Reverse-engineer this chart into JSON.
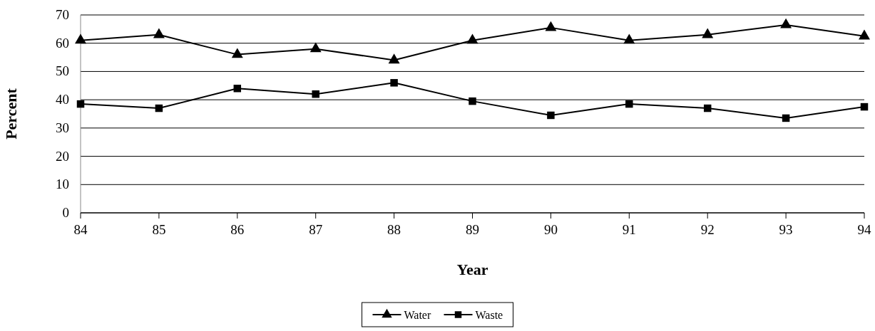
{
  "chart_data": {
    "type": "line",
    "xlabel": "Year",
    "ylabel": "Percent",
    "x": [
      84,
      85,
      86,
      87,
      88,
      89,
      90,
      91,
      92,
      93,
      94
    ],
    "xlim": [
      84,
      94
    ],
    "xticks": [
      84,
      85,
      86,
      87,
      88,
      89,
      90,
      91,
      92,
      93,
      94
    ],
    "ylim": [
      0,
      70
    ],
    "yticks": [
      0,
      10,
      20,
      30,
      40,
      50,
      60,
      70
    ],
    "grid": "y",
    "legend": "bottom",
    "series": [
      {
        "name": "Water",
        "color": "#000000",
        "marker": "triangle",
        "values": [
          61,
          63,
          56,
          58,
          54,
          61,
          65.5,
          61,
          63,
          66.5,
          62.5
        ]
      },
      {
        "name": "Waste",
        "color": "#000000",
        "marker": "square",
        "values": [
          38.5,
          37,
          44,
          42,
          46,
          39.5,
          34.5,
          38.5,
          37,
          33.5,
          37.5
        ]
      }
    ]
  }
}
